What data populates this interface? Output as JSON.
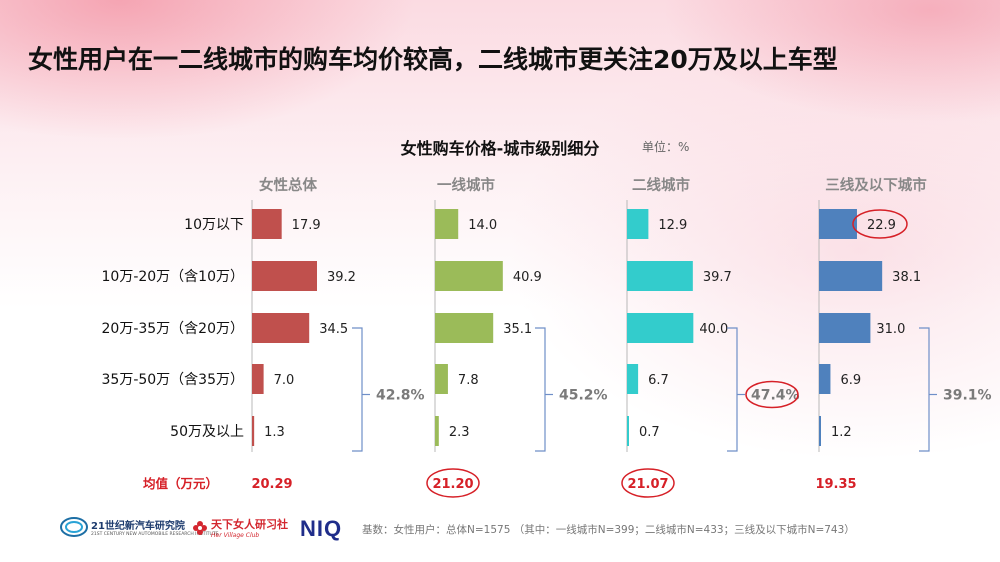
{
  "headline": "女性用户在一二线城市的购车均价较高，二线城市更关注20万及以上车型",
  "chart_title": "女性购车价格-城市级别细分",
  "unit_label": "单位：%",
  "footer_note": "基数：女性用户：总体N=1575 （其中：一线城市N=399；二线城市N=433；三线及以下城市N=743）",
  "logos": {
    "institute_name": "21世纪新汽车研究院",
    "institute_sub": "21ST CENTURY NEW AUTOMOBILE RESEARCH INSTITUTE",
    "hv_name": "天下女人研习社",
    "hv_sub": "Her Village Club",
    "niq": "NIQ"
  },
  "chart_data": {
    "type": "bar",
    "orientation": "horizontal",
    "title": "女性购车价格-城市级别细分",
    "unit": "%",
    "categories": [
      "10万以下",
      "10万-20万（含10万）",
      "20万-35万（含20万）",
      "35万-50万（含35万）",
      "50万及以上"
    ],
    "series": [
      {
        "name": "女性总体",
        "color": "#c0504d",
        "values": [
          17.9,
          39.2,
          34.5,
          7.0,
          1.3
        ],
        "bracket_total": "42.8%",
        "mean": "20.29",
        "mean_circled": false
      },
      {
        "name": "一线城市",
        "color": "#9bbb59",
        "values": [
          14.0,
          40.9,
          35.1,
          7.8,
          2.3
        ],
        "bracket_total": "45.2%",
        "mean": "21.20",
        "mean_circled": true
      },
      {
        "name": "二线城市",
        "color": "#33cccc",
        "values": [
          12.9,
          39.7,
          40.0,
          6.7,
          0.7
        ],
        "bracket_total": "47.4%",
        "bracket_circled": true,
        "mean": "21.07",
        "mean_circled": true
      },
      {
        "name": "三线及以下城市",
        "color": "#4f81bd",
        "values": [
          22.9,
          38.1,
          31.0,
          6.9,
          1.2
        ],
        "bracket_total": "39.1%",
        "mean": "19.35",
        "mean_circled": false,
        "circled_value_index": 0
      }
    ],
    "mean_label": "均值（万元）",
    "bracket_color": "#6f8fc8",
    "highlight_color": "#d62027",
    "xlim": [
      0,
      45
    ]
  }
}
